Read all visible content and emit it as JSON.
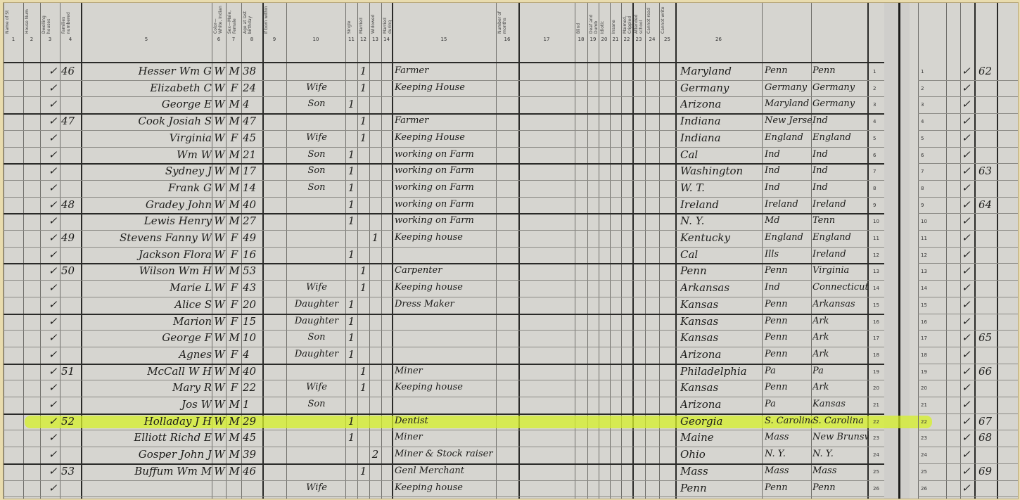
{
  "document": {
    "column_numbers": [
      "1",
      "2",
      "3",
      "4",
      "5",
      "6",
      "7",
      "8",
      "9",
      "10",
      "11",
      "12",
      "13",
      "14",
      "15",
      "16",
      "17",
      "18",
      "19",
      "20",
      "21",
      "22",
      "23",
      "24",
      "25",
      "26"
    ],
    "column_headers": [
      "Name of St",
      "House Num",
      "Dwelling houses",
      "Families numbered",
      "",
      "Color—White, Indian",
      "Sex—Male, Female",
      "Age at last birthday",
      "If born within",
      "",
      "Single",
      "Married",
      "Widowed",
      "Married during",
      "",
      "Number of months",
      "",
      "Blind",
      "Deaf and Dumb",
      "Idiotic",
      "Insane",
      "Maimed, Crippled",
      "Attended school",
      "Cannot read",
      "Cannot write"
    ],
    "highlight_color": "#d6f028",
    "rows": [
      {
        "line": "1",
        "dw": "✓",
        "fam": "46",
        "name": "Hesser Wm G",
        "color": "W",
        "sex": "M",
        "age": "38",
        "rel": "",
        "s": "",
        "m": "1",
        "w": "",
        "occ": "Farmer",
        "bp": "Maryland",
        "fbp": "Penn",
        "mbp": "Penn"
      },
      {
        "line": "2",
        "dw": "✓",
        "fam": "",
        "name": "Elizabeth C",
        "color": "W",
        "sex": "F",
        "age": "24",
        "rel": "Wife",
        "s": "",
        "m": "1",
        "w": "",
        "occ": "Keeping House",
        "bp": "Germany",
        "fbp": "Germany",
        "mbp": "Germany"
      },
      {
        "line": "3",
        "dw": "✓",
        "fam": "",
        "name": "George E",
        "color": "W",
        "sex": "M",
        "age": "4",
        "rel": "Son",
        "s": "1",
        "m": "",
        "w": "",
        "occ": "",
        "bp": "Arizona",
        "fbp": "Maryland",
        "mbp": "Germany",
        "end": true
      },
      {
        "line": "4",
        "dw": "✓",
        "fam": "47",
        "name": "Cook Josiah S",
        "color": "W",
        "sex": "M",
        "age": "47",
        "rel": "",
        "s": "",
        "m": "1",
        "w": "",
        "occ": "Farmer",
        "bp": "Indiana",
        "fbp": "New Jersey",
        "mbp": "Ind"
      },
      {
        "line": "5",
        "dw": "✓",
        "fam": "",
        "name": "Virginia",
        "color": "W",
        "sex": "F",
        "age": "45",
        "rel": "Wife",
        "s": "",
        "m": "1",
        "w": "",
        "occ": "Keeping House",
        "bp": "Indiana",
        "fbp": "England",
        "mbp": "England"
      },
      {
        "line": "6",
        "dw": "✓",
        "fam": "",
        "name": "Wm W",
        "color": "W",
        "sex": "M",
        "age": "21",
        "rel": "Son",
        "s": "1",
        "m": "",
        "w": "",
        "occ": "working on Farm",
        "bp": "Cal",
        "fbp": "Ind",
        "mbp": "Ind",
        "end": true
      },
      {
        "line": "7",
        "dw": "✓",
        "fam": "",
        "name": "Sydney J",
        "color": "W",
        "sex": "M",
        "age": "17",
        "rel": "Son",
        "s": "1",
        "m": "",
        "w": "",
        "occ": "working on Farm",
        "bp": "Washington",
        "fbp": "Ind",
        "mbp": "Ind"
      },
      {
        "line": "8",
        "dw": "✓",
        "fam": "",
        "name": "Frank G",
        "color": "W",
        "sex": "M",
        "age": "14",
        "rel": "Son",
        "s": "1",
        "m": "",
        "w": "",
        "occ": "working on Farm",
        "bp": "W. T.",
        "fbp": "Ind",
        "mbp": "Ind"
      },
      {
        "line": "9",
        "dw": "✓",
        "fam": "48",
        "name": "Gradey John",
        "color": "W",
        "sex": "M",
        "age": "40",
        "rel": "",
        "s": "1",
        "m": "",
        "w": "",
        "occ": "working on Farm",
        "bp": "Ireland",
        "fbp": "Ireland",
        "mbp": "Ireland",
        "end": true
      },
      {
        "line": "10",
        "dw": "✓",
        "fam": "",
        "name": "Lewis Henry",
        "color": "W",
        "sex": "M",
        "age": "27",
        "rel": "",
        "s": "1",
        "m": "",
        "w": "",
        "occ": "working on Farm",
        "bp": "N. Y.",
        "fbp": "Md",
        "mbp": "Tenn"
      },
      {
        "line": "11",
        "dw": "✓",
        "fam": "49",
        "name": "Stevens Fanny W",
        "color": "W",
        "sex": "F",
        "age": "49",
        "rel": "",
        "s": "",
        "m": "",
        "w": "1",
        "occ": "Keeping house",
        "bp": "Kentucky",
        "fbp": "England",
        "mbp": "England"
      },
      {
        "line": "12",
        "dw": "✓",
        "fam": "",
        "name": "Jackson Flora",
        "color": "W",
        "sex": "F",
        "age": "16",
        "rel": "",
        "s": "1",
        "m": "",
        "w": "",
        "occ": "",
        "bp": "Cal",
        "fbp": "Ills",
        "mbp": "Ireland",
        "end": true
      },
      {
        "line": "13",
        "dw": "✓",
        "fam": "50",
        "name": "Wilson Wm H",
        "color": "W",
        "sex": "M",
        "age": "53",
        "rel": "",
        "s": "",
        "m": "1",
        "w": "",
        "occ": "Carpenter",
        "bp": "Penn",
        "fbp": "Penn",
        "mbp": "Virginia"
      },
      {
        "line": "14",
        "dw": "✓",
        "fam": "",
        "name": "Marie L",
        "color": "W",
        "sex": "F",
        "age": "43",
        "rel": "Wife",
        "s": "",
        "m": "1",
        "w": "",
        "occ": "Keeping house",
        "bp": "Arkansas",
        "fbp": "Ind",
        "mbp": "Connecticut"
      },
      {
        "line": "15",
        "dw": "✓",
        "fam": "",
        "name": "Alice S",
        "color": "W",
        "sex": "F",
        "age": "20",
        "rel": "Daughter",
        "s": "1",
        "m": "",
        "w": "",
        "occ": "Dress Maker",
        "bp": "Kansas",
        "fbp": "Penn",
        "mbp": "Arkansas",
        "end": true
      },
      {
        "line": "16",
        "dw": "✓",
        "fam": "",
        "name": "Marion",
        "color": "W",
        "sex": "F",
        "age": "15",
        "rel": "Daughter",
        "s": "1",
        "m": "",
        "w": "",
        "occ": "",
        "bp": "Kansas",
        "fbp": "Penn",
        "mbp": "Ark"
      },
      {
        "line": "17",
        "dw": "✓",
        "fam": "",
        "name": "George F",
        "color": "W",
        "sex": "M",
        "age": "10",
        "rel": "Son",
        "s": "1",
        "m": "",
        "w": "",
        "occ": "",
        "bp": "Kansas",
        "fbp": "Penn",
        "mbp": "Ark"
      },
      {
        "line": "18",
        "dw": "✓",
        "fam": "",
        "name": "Agnes",
        "color": "W",
        "sex": "F",
        "age": "4",
        "rel": "Daughter",
        "s": "1",
        "m": "",
        "w": "",
        "occ": "",
        "bp": "Arizona",
        "fbp": "Penn",
        "mbp": "Ark",
        "end": true
      },
      {
        "line": "19",
        "dw": "✓",
        "fam": "51",
        "name": "McCall W H",
        "color": "W",
        "sex": "M",
        "age": "40",
        "rel": "",
        "s": "",
        "m": "1",
        "w": "",
        "occ": "Miner",
        "bp": "Philadelphia",
        "fbp": "Pa",
        "mbp": "Pa"
      },
      {
        "line": "20",
        "dw": "✓",
        "fam": "",
        "name": "Mary R",
        "color": "W",
        "sex": "F",
        "age": "22",
        "rel": "Wife",
        "s": "",
        "m": "1",
        "w": "",
        "occ": "Keeping house",
        "bp": "Kansas",
        "fbp": "Penn",
        "mbp": "Ark"
      },
      {
        "line": "21",
        "dw": "✓",
        "fam": "",
        "name": "Jos W",
        "color": "W",
        "sex": "M",
        "age": "1",
        "rel": "Son",
        "s": "",
        "m": "",
        "w": "",
        "occ": "",
        "bp": "Arizona",
        "fbp": "Pa",
        "mbp": "Kansas",
        "end": true
      },
      {
        "line": "22",
        "dw": "✓",
        "fam": "52",
        "name": "Holladay J H",
        "color": "W",
        "sex": "M",
        "age": "29",
        "rel": "",
        "s": "1",
        "m": "",
        "w": "",
        "occ": "Dentist",
        "bp": "Georgia",
        "fbp": "S. Carolina",
        "mbp": "S. Carolina",
        "highlight": true
      },
      {
        "line": "23",
        "dw": "✓",
        "fam": "",
        "name": "Elliott Richd E",
        "color": "W",
        "sex": "M",
        "age": "45",
        "rel": "",
        "s": "1",
        "m": "",
        "w": "",
        "occ": "Miner",
        "bp": "Maine",
        "fbp": "Mass",
        "mbp": "New Brunswick"
      },
      {
        "line": "24",
        "dw": "✓",
        "fam": "",
        "name": "Gosper John J",
        "color": "W",
        "sex": "M",
        "age": "39",
        "rel": "",
        "s": "",
        "m": "",
        "w": "2",
        "occ": "Miner & Stock raiser",
        "bp": "Ohio",
        "fbp": "N. Y.",
        "mbp": "N. Y.",
        "end": true
      },
      {
        "line": "25",
        "dw": "✓",
        "fam": "53",
        "name": "Buffum Wm M",
        "color": "W",
        "sex": "M",
        "age": "46",
        "rel": "",
        "s": "",
        "m": "1",
        "w": "",
        "occ": "Genl Merchant",
        "bp": "Mass",
        "fbp": "Mass",
        "mbp": "Mass"
      },
      {
        "line": "26",
        "dw": "✓",
        "fam": "",
        "name": "",
        "color": "",
        "sex": "",
        "age": "",
        "rel": "Wife",
        "s": "",
        "m": "",
        "w": "",
        "occ": "Keeping house",
        "bp": "Penn",
        "fbp": "Penn",
        "mbp": "Penn"
      }
    ],
    "next_page": {
      "rows": [
        {
          "line": "1",
          "chk": "✓",
          "dw": "62"
        },
        {
          "line": "2",
          "chk": "✓",
          "dw": ""
        },
        {
          "line": "3",
          "chk": "✓",
          "dw": ""
        },
        {
          "line": "4",
          "chk": "✓",
          "dw": ""
        },
        {
          "line": "5",
          "chk": "✓",
          "dw": ""
        },
        {
          "line": "6",
          "chk": "✓",
          "dw": ""
        },
        {
          "line": "7",
          "chk": "✓",
          "dw": "63"
        },
        {
          "line": "8",
          "chk": "✓",
          "dw": ""
        },
        {
          "line": "9",
          "chk": "✓",
          "dw": "64"
        },
        {
          "line": "10",
          "chk": "✓",
          "dw": ""
        },
        {
          "line": "11",
          "chk": "✓",
          "dw": ""
        },
        {
          "line": "12",
          "chk": "✓",
          "dw": ""
        },
        {
          "line": "13",
          "chk": "✓",
          "dw": ""
        },
        {
          "line": "14",
          "chk": "✓",
          "dw": ""
        },
        {
          "line": "15",
          "chk": "✓",
          "dw": ""
        },
        {
          "line": "16",
          "chk": "✓",
          "dw": ""
        },
        {
          "line": "17",
          "chk": "✓",
          "dw": "65"
        },
        {
          "line": "18",
          "chk": "✓",
          "dw": ""
        },
        {
          "line": "19",
          "chk": "✓",
          "dw": "66"
        },
        {
          "line": "20",
          "chk": "✓",
          "dw": ""
        },
        {
          "line": "21",
          "chk": "✓",
          "dw": ""
        },
        {
          "line": "22",
          "chk": "✓",
          "dw": "67"
        },
        {
          "line": "23",
          "chk": "✓",
          "dw": "68"
        },
        {
          "line": "24",
          "chk": "✓",
          "dw": ""
        },
        {
          "line": "25",
          "chk": "✓",
          "dw": "69"
        },
        {
          "line": "26",
          "chk": "✓",
          "dw": ""
        }
      ]
    }
  }
}
